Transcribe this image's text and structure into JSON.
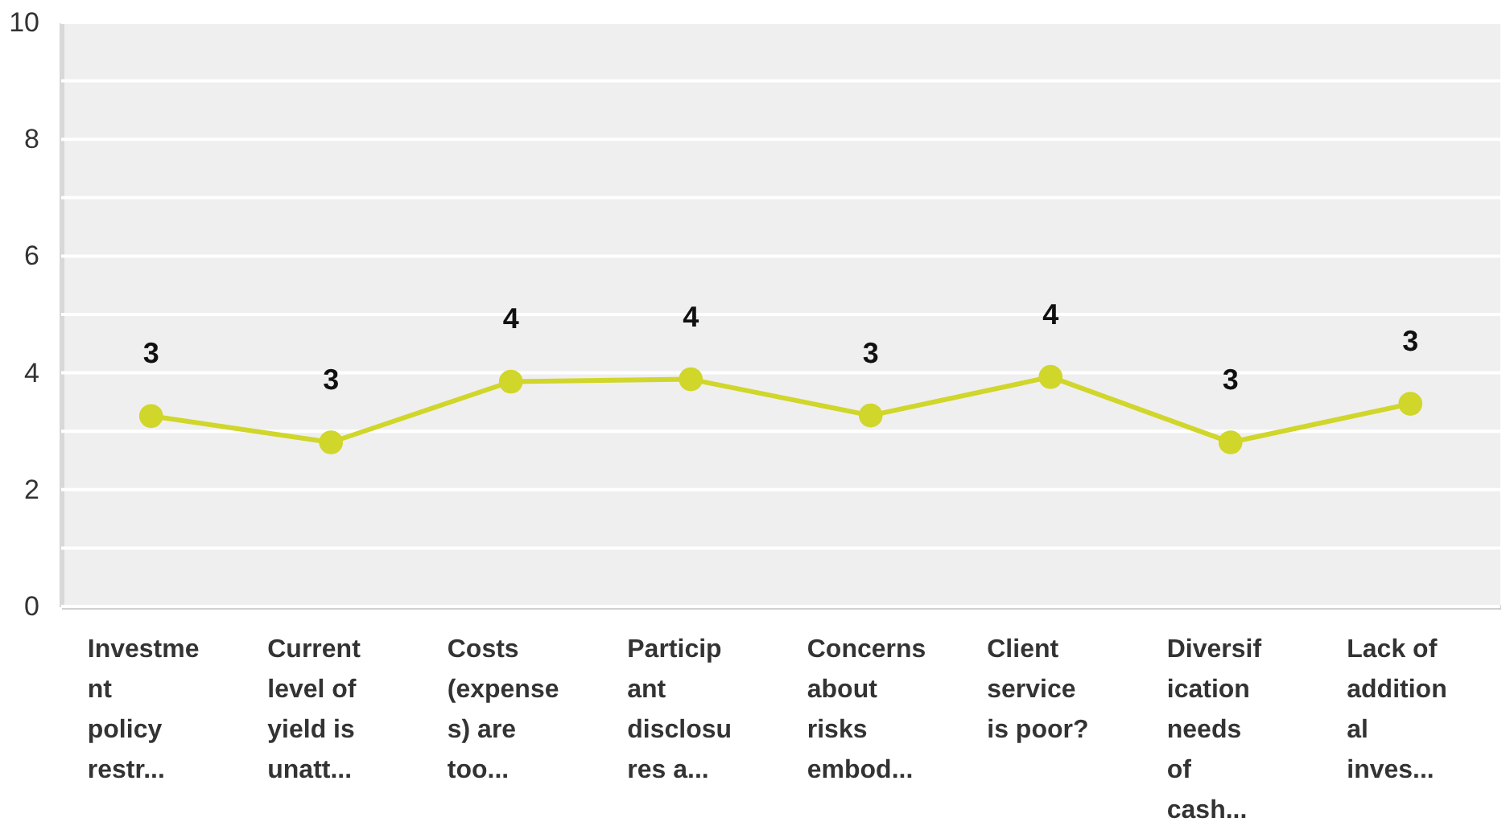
{
  "chart_data": {
    "type": "line",
    "categories": [
      "Investme\nnt\npolicy\nrestr...",
      "Current\nlevel of\nyield is\nunatt...",
      "Costs\n(expense\ns) are\ntoo...",
      "Particip\nant\ndisclosu\nres a...",
      "Concerns\nabout\nrisks\nembod...",
      "Client\nservice\nis poor?",
      "Diversif\nication\nneeds\nof\ncash...",
      "Lack of\naddition\nal\ninves..."
    ],
    "series": [
      {
        "color": "#d0d62a",
        "values": [
          3.26,
          2.81,
          3.85,
          3.89,
          3.27,
          3.93,
          2.81,
          3.47
        ],
        "value_labels": [
          "3",
          "3",
          "4",
          "4",
          "3",
          "4",
          "3",
          "3"
        ]
      }
    ],
    "ylim": [
      0,
      10
    ],
    "yticks": [
      0,
      {
        "value": 1,
        "label": null
      },
      2,
      {
        "value": 3,
        "label": null
      },
      4,
      {
        "value": 5,
        "label": null
      },
      6,
      {
        "value": 7,
        "label": null
      },
      8,
      {
        "value": 9,
        "label": null
      },
      10
    ],
    "grid": "y",
    "marker": "circle",
    "line_style": "solid"
  }
}
